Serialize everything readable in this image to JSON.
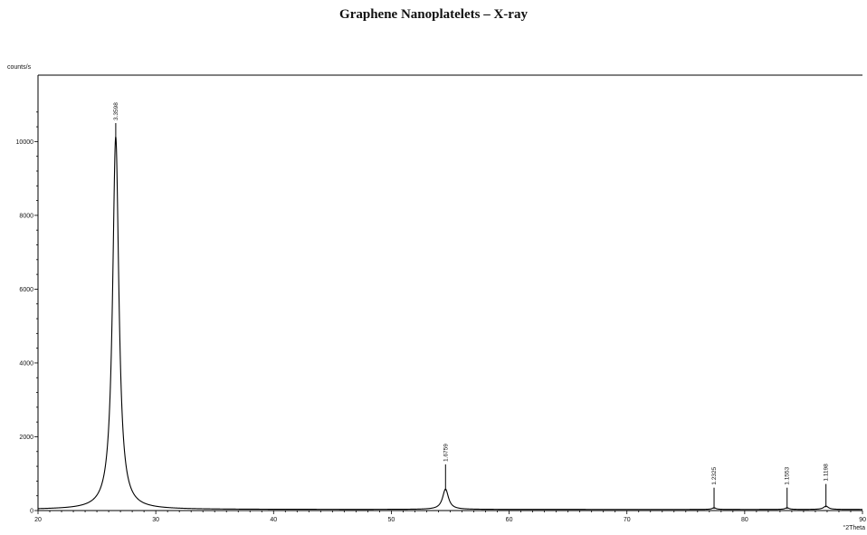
{
  "chart_data": {
    "type": "line",
    "title": "Graphene Nanoplatelets – X-ray",
    "ylabel": "counts/s",
    "xlabel": "°2Theta",
    "xlim": [
      20,
      90
    ],
    "ylim": [
      0,
      11800
    ],
    "x_ticks": [
      20,
      30,
      40,
      50,
      60,
      70,
      80,
      90
    ],
    "x_tick_labels": [
      "20",
      "30",
      "40",
      "50",
      "60",
      "70",
      "80",
      "90"
    ],
    "y_ticks": [
      0,
      2000,
      4000,
      6000,
      8000,
      10000
    ],
    "y_tick_labels": [
      "0",
      "2000",
      "4000",
      "6000",
      "8000",
      "10000"
    ],
    "grid": false,
    "series": [
      {
        "color": "#000000",
        "peaks": [
          {
            "x": 26.6,
            "height": 10100,
            "width": 0.32
          },
          {
            "x": 54.6,
            "height": 550,
            "width": 0.3
          },
          {
            "x": 77.4,
            "height": 45,
            "width": 0.2
          },
          {
            "x": 83.6,
            "height": 45,
            "width": 0.2
          },
          {
            "x": 86.9,
            "height": 90,
            "width": 0.25
          }
        ],
        "baseline": 30
      }
    ],
    "annotations": [
      {
        "x": 26.6,
        "y": 10100,
        "text": "3.3598",
        "stick": 10500
      },
      {
        "x": 54.6,
        "y": 550,
        "text": "1.6759",
        "stick": 1250
      },
      {
        "x": 77.4,
        "y": 45,
        "text": "1.2325",
        "stick": 620
      },
      {
        "x": 83.6,
        "y": 45,
        "text": "1.1553",
        "stick": 620
      },
      {
        "x": 86.9,
        "y": 90,
        "text": "1.1198",
        "stick": 720
      }
    ]
  }
}
